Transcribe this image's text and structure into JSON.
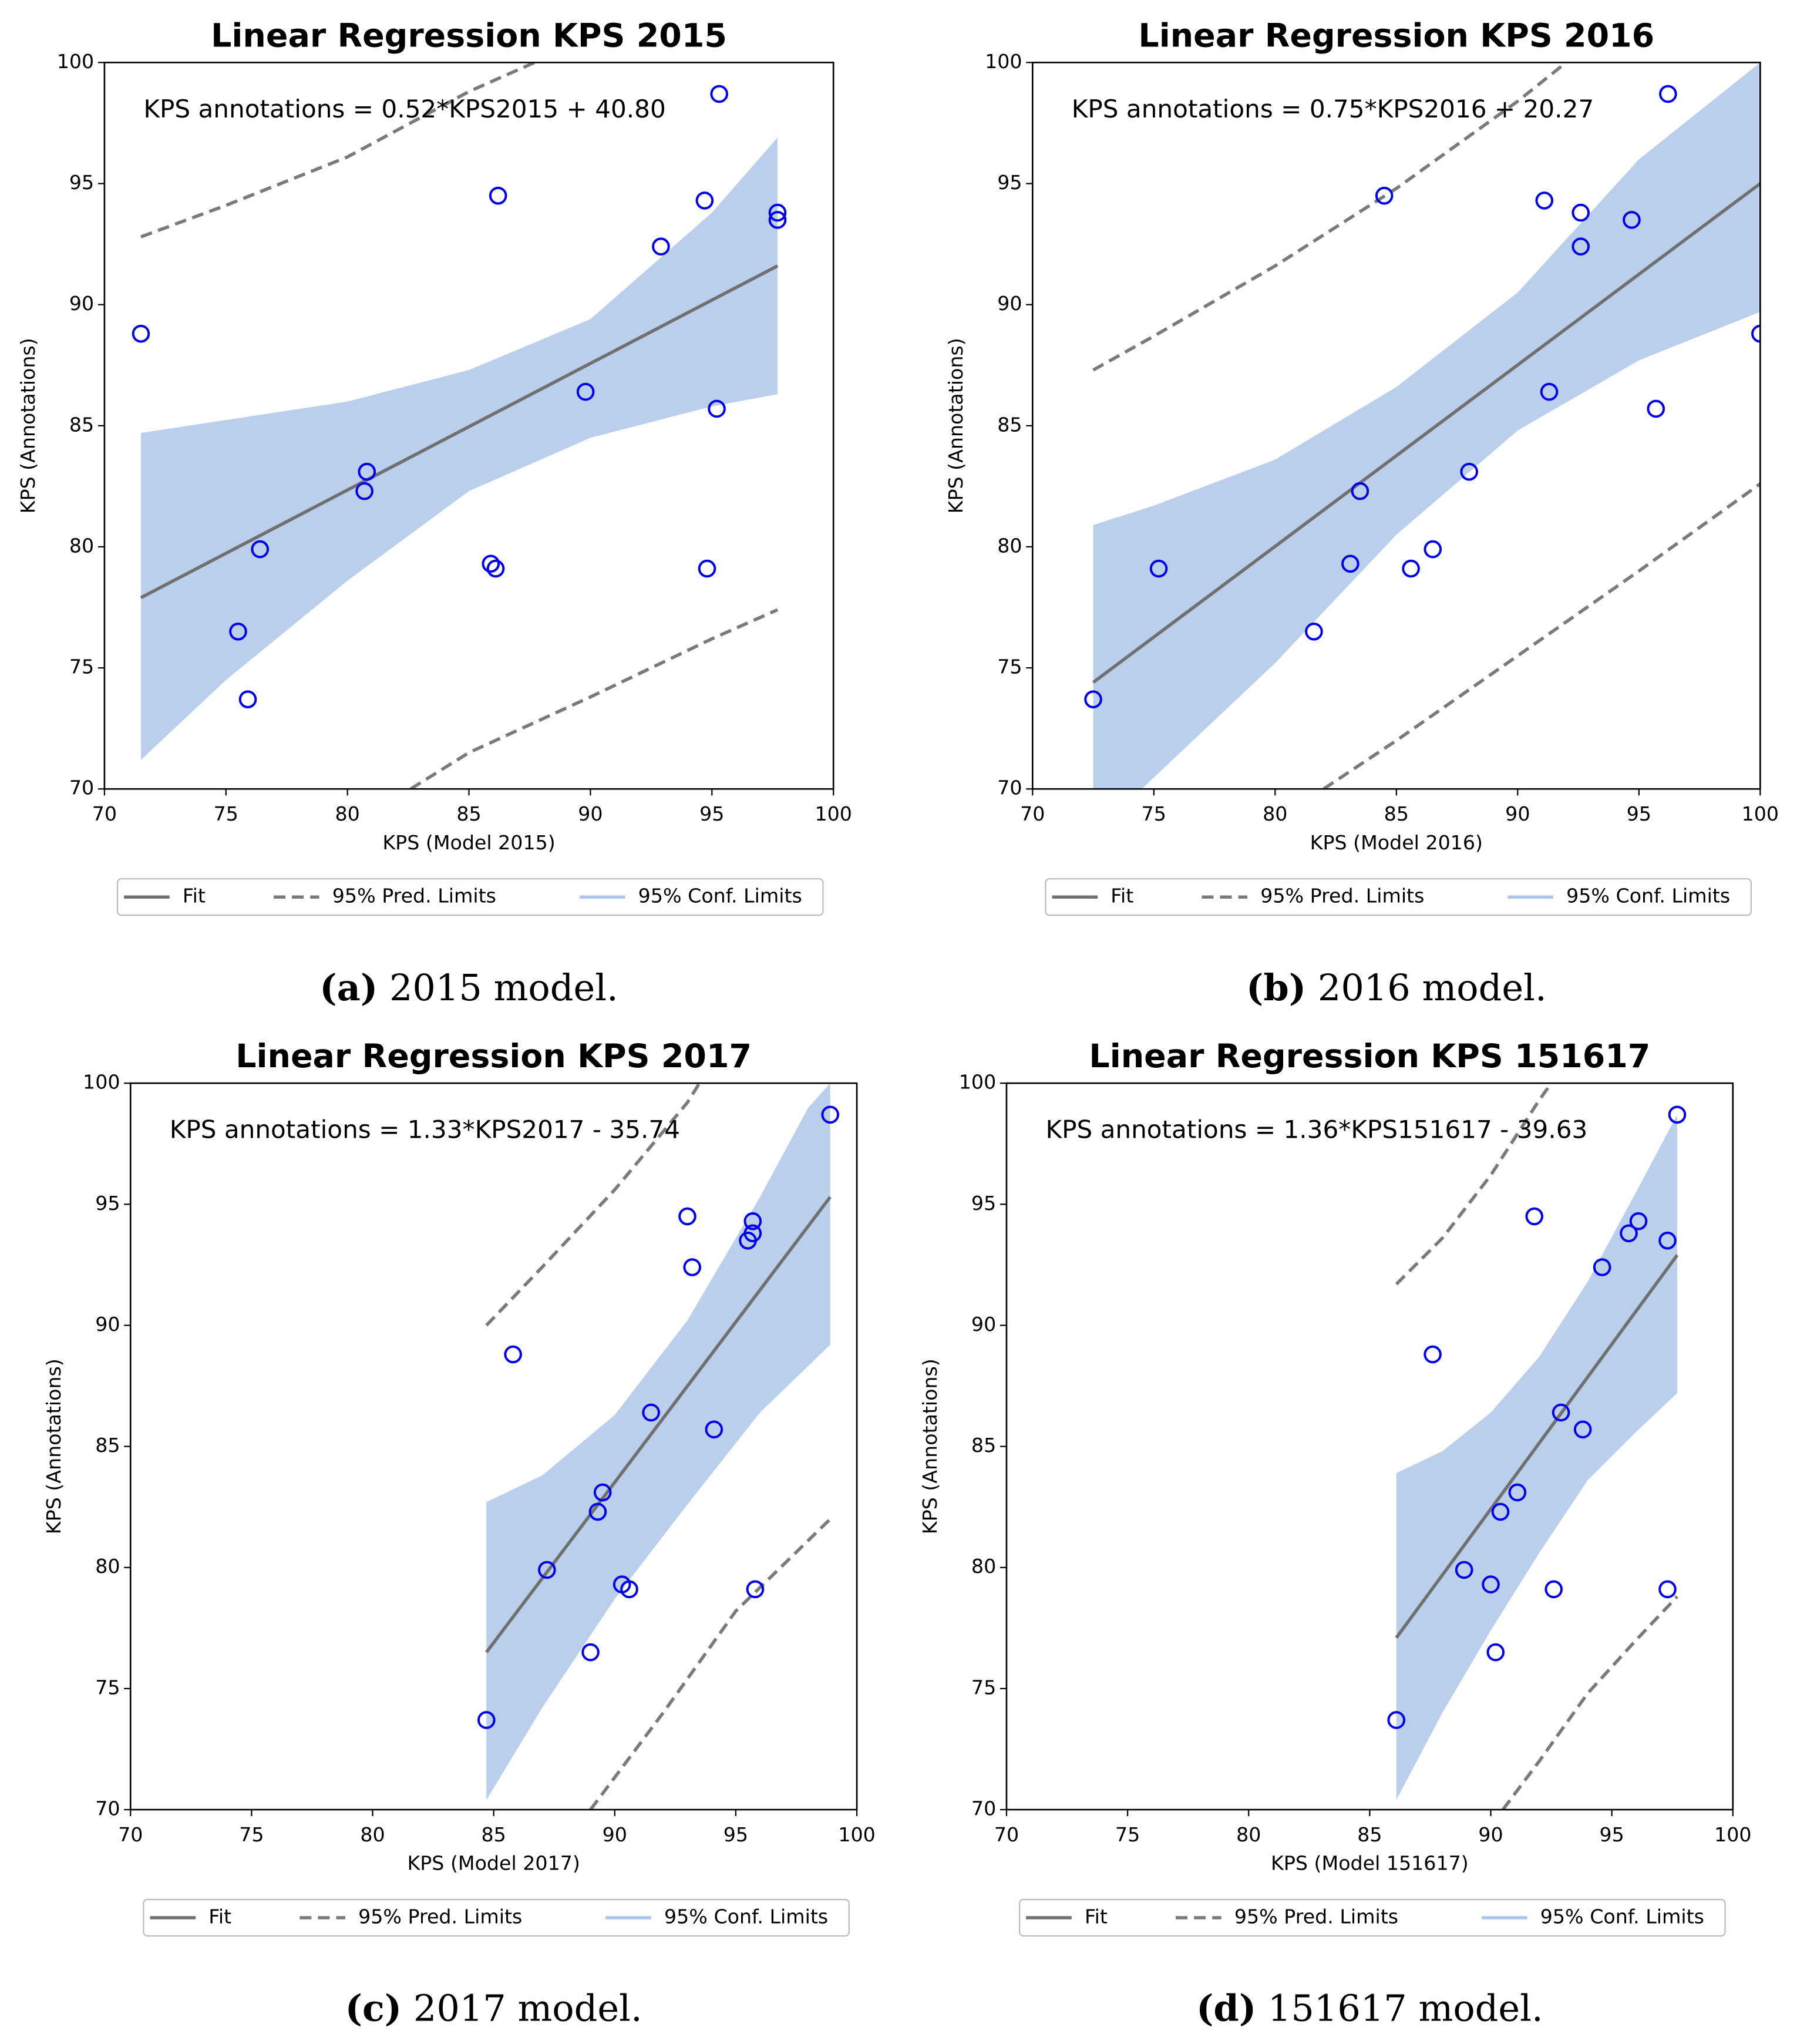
{
  "chart_data": [
    {
      "type": "scatter",
      "title": "Linear Regression KPS 2015",
      "xlabel": "KPS (Model 2015)",
      "ylabel": "KPS (Annotations)",
      "annotation": "KPS annotations = 0.52*KPS2015 + 40.80",
      "caption_label": "(a)",
      "caption": "2015 model.",
      "xlim": [
        70,
        100
      ],
      "ylim": [
        70,
        100
      ],
      "xticks": [
        70,
        75,
        80,
        85,
        90,
        95,
        100
      ],
      "yticks": [
        70,
        75,
        80,
        85,
        90,
        95,
        100
      ],
      "points": {
        "color": "#0000ee",
        "x": [
          71.5,
          75.5,
          75.9,
          76.4,
          80.7,
          80.8,
          85.9,
          86.1,
          86.2,
          89.8,
          92.9,
          94.7,
          94.8,
          95.2,
          95.3,
          97.7,
          97.7
        ],
        "y": [
          88.8,
          76.5,
          73.7,
          79.9,
          82.3,
          83.1,
          79.3,
          79.1,
          94.5,
          86.4,
          92.4,
          94.3,
          79.1,
          85.7,
          98.7,
          93.8,
          93.5
        ]
      },
      "fit": {
        "name": "Fit",
        "color": "#707070",
        "x": [
          71.5,
          97.7
        ],
        "y": [
          77.9,
          91.6
        ]
      },
      "pred_limits": {
        "name": "95% Pred. Limits",
        "color": "#7a7a7a",
        "upper": {
          "x": [
            71.5,
            75,
            80,
            85,
            87.7
          ],
          "y": [
            92.8,
            94.1,
            96.1,
            98.8,
            100
          ]
        },
        "lower": {
          "x": [
            82.6,
            85,
            90,
            95,
            97.7
          ],
          "y": [
            70,
            71.5,
            73.8,
            76.2,
            77.4
          ]
        }
      },
      "conf_limits": {
        "name": "95% Conf. Limits",
        "color": "#aec7e8",
        "x": [
          71.5,
          80,
          85,
          90,
          95,
          97.7,
          97.7,
          95,
          90,
          85,
          80,
          75,
          71.5
        ],
        "y": [
          84.7,
          86,
          87.3,
          89.4,
          93.8,
          96.9,
          86.3,
          85.8,
          84.5,
          82.3,
          78.6,
          74.5,
          71.2
        ]
      }
    },
    {
      "type": "scatter",
      "title": "Linear Regression KPS 2016",
      "xlabel": "KPS (Model 2016)",
      "ylabel": "KPS (Annotations)",
      "annotation": "KPS annotations = 0.75*KPS2016 + 20.27",
      "caption_label": "(b)",
      "caption": "2016 model.",
      "xlim": [
        70,
        100
      ],
      "ylim": [
        70,
        100
      ],
      "xticks": [
        70,
        75,
        80,
        85,
        90,
        95,
        100
      ],
      "yticks": [
        70,
        75,
        80,
        85,
        90,
        95,
        100
      ],
      "points": {
        "color": "#0000ee",
        "x": [
          72.5,
          75.2,
          81.6,
          83.1,
          83.5,
          84.5,
          85.6,
          86.5,
          88,
          91.1,
          91.3,
          92.6,
          92.6,
          94.7,
          95.7,
          96.2,
          100
        ],
        "y": [
          73.7,
          79.1,
          76.5,
          79.3,
          82.3,
          94.5,
          79.1,
          79.9,
          83.1,
          94.3,
          86.4,
          93.8,
          92.4,
          93.5,
          85.7,
          98.7,
          88.8
        ]
      },
      "fit": {
        "name": "Fit",
        "color": "#707070",
        "x": [
          72.5,
          100
        ],
        "y": [
          74.4,
          95
        ]
      },
      "pred_limits": {
        "name": "95% Pred. Limits",
        "color": "#7a7a7a",
        "upper": {
          "x": [
            72.5,
            75,
            80,
            85,
            90,
            92
          ],
          "y": [
            87.3,
            88.7,
            91.6,
            94.8,
            98.4,
            100
          ]
        },
        "lower": {
          "x": [
            82,
            85,
            90,
            95,
            100
          ],
          "y": [
            70,
            72,
            75.5,
            79,
            82.6
          ]
        }
      },
      "conf_limits": {
        "name": "95% Conf. Limits",
        "color": "#aec7e8",
        "x": [
          72.5,
          75,
          80,
          85,
          90,
          95,
          100,
          100,
          95,
          90,
          85,
          80,
          74.5,
          72.5
        ],
        "y": [
          80.9,
          81.7,
          83.6,
          86.6,
          90.5,
          96,
          100,
          89.7,
          87.7,
          84.8,
          80.5,
          75.2,
          70,
          70
        ]
      }
    },
    {
      "type": "scatter",
      "title": "Linear Regression KPS 2017",
      "xlabel": "KPS (Model 2017)",
      "ylabel": "KPS (Annotations)",
      "annotation": "KPS annotations = 1.33*KPS2017 - 35.74",
      "caption_label": "(c)",
      "caption": "2017 model.",
      "xlim": [
        70,
        100
      ],
      "ylim": [
        70,
        100
      ],
      "xticks": [
        70,
        75,
        80,
        85,
        90,
        95,
        100
      ],
      "yticks": [
        70,
        75,
        80,
        85,
        90,
        95,
        100
      ],
      "points": {
        "color": "#0000ee",
        "x": [
          84.7,
          85.8,
          87.2,
          89,
          89.3,
          89.5,
          90.3,
          90.6,
          91.5,
          93,
          93.2,
          94.1,
          95.5,
          95.7,
          95.7,
          95.8,
          98.9
        ],
        "y": [
          73.7,
          88.8,
          79.9,
          76.5,
          82.3,
          83.1,
          79.3,
          79.1,
          86.4,
          94.5,
          92.4,
          85.7,
          93.5,
          93.8,
          94.3,
          79.1,
          98.7
        ]
      },
      "fit": {
        "name": "Fit",
        "color": "#707070",
        "x": [
          84.7,
          98.9
        ],
        "y": [
          76.5,
          95.3
        ]
      },
      "pred_limits": {
        "name": "95% Pred. Limits",
        "color": "#7a7a7a",
        "upper": {
          "x": [
            84.7,
            87,
            90,
            93,
            93.5
          ],
          "y": [
            90,
            92.4,
            95.6,
            99.2,
            100
          ]
        },
        "lower": {
          "x": [
            89,
            92,
            95,
            98.9
          ],
          "y": [
            70,
            74,
            78.2,
            82
          ]
        }
      },
      "conf_limits": {
        "name": "95% Conf. Limits",
        "color": "#aec7e8",
        "x": [
          84.7,
          87,
          90,
          93,
          96,
          98,
          98.9,
          98.9,
          96,
          93,
          90,
          87,
          84.7
        ],
        "y": [
          82.7,
          83.8,
          86.3,
          90.2,
          95.3,
          99,
          100,
          89.2,
          86.4,
          82.6,
          78.7,
          74.2,
          70.4
        ]
      }
    },
    {
      "type": "scatter",
      "title": "Linear Regression KPS 151617",
      "xlabel": "KPS (Model 151617)",
      "ylabel": "KPS (Annotations)",
      "annotation": "KPS annotations = 1.36*KPS151617 - 39.63",
      "caption_label": "(d)",
      "caption": "151617 model.",
      "xlim": [
        70,
        100
      ],
      "ylim": [
        70,
        100
      ],
      "xticks": [
        70,
        75,
        80,
        85,
        90,
        95,
        100
      ],
      "yticks": [
        70,
        75,
        80,
        85,
        90,
        95,
        100
      ],
      "points": {
        "color": "#0000ee",
        "x": [
          86.1,
          87.6,
          88.9,
          90,
          90.2,
          90.4,
          91.1,
          91.8,
          92.6,
          92.9,
          93.8,
          94.6,
          95.7,
          96.1,
          97.3,
          97.3,
          97.7
        ],
        "y": [
          73.7,
          88.8,
          79.9,
          79.3,
          76.5,
          82.3,
          83.1,
          94.5,
          79.1,
          86.4,
          85.7,
          92.4,
          93.8,
          94.3,
          93.5,
          79.1,
          98.7
        ]
      },
      "fit": {
        "name": "Fit",
        "color": "#707070",
        "x": [
          86.1,
          97.7
        ],
        "y": [
          77.1,
          92.9
        ]
      },
      "pred_limits": {
        "name": "95% Pred. Limits",
        "color": "#7a7a7a",
        "upper": {
          "x": [
            86.1,
            88,
            90,
            92,
            92.5
          ],
          "y": [
            91.7,
            93.6,
            96.2,
            99.3,
            100
          ]
        },
        "lower": {
          "x": [
            90.5,
            92,
            94,
            96,
            97.7
          ],
          "y": [
            70,
            72,
            74.8,
            77,
            78.8
          ]
        }
      },
      "conf_limits": {
        "name": "95% Conf. Limits",
        "color": "#aec7e8",
        "x": [
          86.1,
          88,
          90,
          92,
          94,
          96,
          97.7,
          97.7,
          96,
          94,
          92,
          90,
          88,
          86.1
        ],
        "y": [
          83.9,
          84.8,
          86.4,
          88.7,
          91.8,
          95.5,
          98.7,
          87.2,
          85.6,
          83.6,
          80.6,
          77.4,
          74,
          70.4
        ]
      }
    }
  ]
}
